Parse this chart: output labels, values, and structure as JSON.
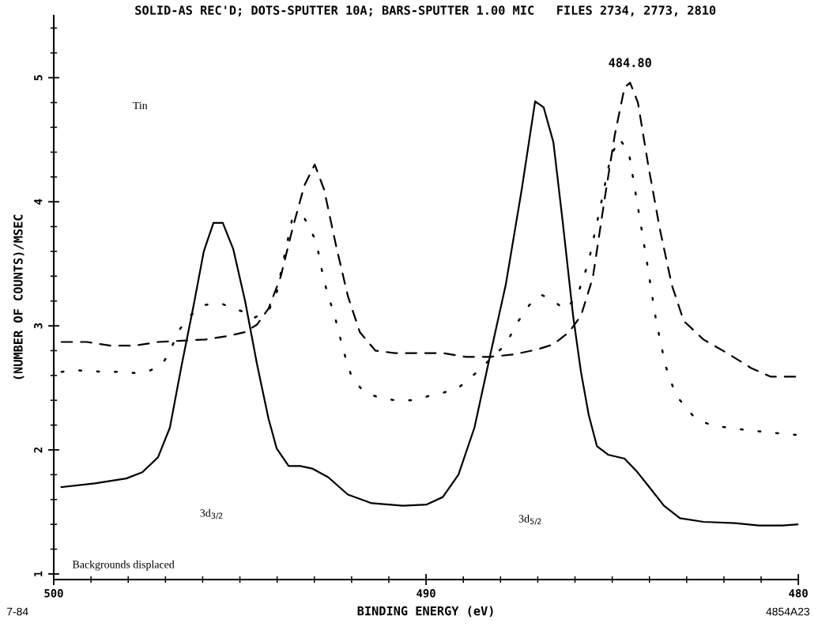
{
  "chart_data": {
    "type": "line",
    "title": "SOLID-AS REC'D; DOTS-SPUTTER 10A; BARS-SPUTTER 1.00 MIC   FILES 2734, 2773, 2810",
    "xlabel": "BINDING ENERGY (eV)",
    "ylabel": "(NUMBER OF COUNTS)/MSEC",
    "xlim": [
      500,
      480
    ],
    "ylim": [
      0.955,
      5.5
    ],
    "xticks": [
      500,
      {
        "value": 499,
        "label": null
      },
      {
        "value": 498,
        "label": null
      },
      {
        "value": 497,
        "label": null
      },
      {
        "value": 496,
        "label": null
      },
      {
        "value": 495,
        "label": null
      },
      {
        "value": 494,
        "label": null
      },
      {
        "value": 493,
        "label": null
      },
      {
        "value": 492,
        "label": null
      },
      {
        "value": 491,
        "label": null
      },
      490,
      {
        "value": 489,
        "label": null
      },
      {
        "value": 488,
        "label": null
      },
      {
        "value": 487,
        "label": null
      },
      {
        "value": 486,
        "label": null
      },
      {
        "value": 485,
        "label": null
      },
      {
        "value": 484,
        "label": null
      },
      {
        "value": 483,
        "label": null
      },
      {
        "value": 482,
        "label": null
      },
      {
        "value": 481,
        "label": null
      },
      480
    ],
    "yticks": [
      1,
      {
        "value": 1.2,
        "label": null
      },
      {
        "value": 1.4,
        "label": null
      },
      {
        "value": 1.6,
        "label": null
      },
      {
        "value": 1.8,
        "label": null
      },
      2,
      {
        "value": 2.2,
        "label": null
      },
      {
        "value": 2.4,
        "label": null
      },
      {
        "value": 2.6,
        "label": null
      },
      {
        "value": 2.8,
        "label": null
      },
      3,
      {
        "value": 3.2,
        "label": null
      },
      {
        "value": 3.4,
        "label": null
      },
      {
        "value": 3.6,
        "label": null
      },
      {
        "value": 3.8,
        "label": null
      },
      4,
      {
        "value": 4.2,
        "label": null
      },
      {
        "value": 4.4,
        "label": null
      },
      {
        "value": 4.6,
        "label": null
      },
      {
        "value": 4.8,
        "label": null
      },
      5,
      {
        "value": 5.2,
        "label": null
      },
      {
        "value": 5.4,
        "label": null
      }
    ],
    "grid": false,
    "marker": "none",
    "series": [
      {
        "color": "#000000",
        "line_style": "solid",
        "x": [
          499.79,
          498.9,
          498.05,
          497.62,
          497.2,
          496.88,
          496.56,
          496.24,
          495.97,
          495.71,
          495.46,
          495.18,
          494.86,
          494.54,
          494.23,
          494.01,
          493.69,
          493.38,
          493.06,
          492.63,
          492.1,
          491.46,
          490.62,
          489.98,
          489.55,
          489.13,
          488.7,
          488.28,
          487.86,
          487.43,
          487.07,
          486.84,
          486.58,
          486.33,
          486.05,
          485.84,
          485.63,
          485.41,
          485.1,
          484.67,
          484.35,
          484.03,
          483.61,
          483.18,
          482.55,
          481.7,
          481.06,
          480.42,
          480.0
        ],
        "values": [
          1.7,
          1.73,
          1.77,
          1.82,
          1.94,
          2.18,
          2.69,
          3.17,
          3.6,
          3.83,
          3.83,
          3.62,
          3.2,
          2.69,
          2.25,
          2.01,
          1.87,
          1.87,
          1.85,
          1.78,
          1.64,
          1.57,
          1.55,
          1.56,
          1.62,
          1.8,
          2.18,
          2.76,
          3.33,
          4.1,
          4.81,
          4.76,
          4.48,
          3.84,
          3.08,
          2.63,
          2.28,
          2.03,
          1.96,
          1.93,
          1.83,
          1.71,
          1.55,
          1.45,
          1.42,
          1.41,
          1.39,
          1.39,
          1.4
        ]
      },
      {
        "color": "#000000",
        "line_style": "dotted",
        "x": [
          499.79,
          499.32,
          498.68,
          498.26,
          497.83,
          497.41,
          497.09,
          496.88,
          496.67,
          496.35,
          495.92,
          495.5,
          495.18,
          494.86,
          494.65,
          494.23,
          494.01,
          493.59,
          493.27,
          492.95,
          492.74,
          492.42,
          492.21,
          492.0,
          491.68,
          491.25,
          490.83,
          490.4,
          489.98,
          489.55,
          489.13,
          488.7,
          488.28,
          487.86,
          487.54,
          487.22,
          486.9,
          486.58,
          486.26,
          485.94,
          485.63,
          485.31,
          485.05,
          484.82,
          484.56,
          484.35,
          484.08,
          483.82,
          483.57,
          483.29,
          483.01,
          482.76,
          482.34,
          481.7,
          481.06,
          480.42,
          480.0
        ],
        "values": [
          2.63,
          2.64,
          2.63,
          2.63,
          2.62,
          2.64,
          2.69,
          2.79,
          2.95,
          3.08,
          3.17,
          3.18,
          3.14,
          3.11,
          3.06,
          3.12,
          3.27,
          3.87,
          3.87,
          3.68,
          3.36,
          3.04,
          2.79,
          2.59,
          2.47,
          2.42,
          2.4,
          2.4,
          2.43,
          2.46,
          2.5,
          2.61,
          2.73,
          2.85,
          3.03,
          3.17,
          3.25,
          3.2,
          3.13,
          3.24,
          3.52,
          3.97,
          4.35,
          4.51,
          4.41,
          4.03,
          3.54,
          3.04,
          2.68,
          2.44,
          2.34,
          2.25,
          2.2,
          2.17,
          2.15,
          2.13,
          2.12
        ]
      },
      {
        "color": "#000000",
        "line_style": "dashed",
        "x": [
          499.79,
          499.11,
          498.47,
          497.83,
          497.2,
          496.56,
          495.92,
          495.29,
          494.86,
          494.54,
          494.23,
          493.91,
          493.59,
          493.27,
          492.99,
          492.74,
          492.42,
          492.1,
          491.78,
          491.36,
          490.83,
          490.19,
          489.55,
          488.92,
          488.28,
          487.64,
          487.01,
          486.58,
          486.16,
          485.84,
          485.52,
          485.2,
          484.93,
          484.67,
          484.52,
          484.31,
          484.03,
          483.72,
          483.4,
          483.08,
          482.55,
          481.91,
          481.27,
          480.74,
          480.0
        ],
        "values": [
          2.87,
          2.87,
          2.84,
          2.84,
          2.87,
          2.88,
          2.89,
          2.92,
          2.95,
          3.01,
          3.14,
          3.39,
          3.78,
          4.13,
          4.3,
          4.1,
          3.65,
          3.24,
          2.95,
          2.8,
          2.78,
          2.78,
          2.78,
          2.75,
          2.75,
          2.77,
          2.81,
          2.85,
          2.95,
          3.08,
          3.39,
          4.03,
          4.54,
          4.92,
          4.96,
          4.8,
          4.29,
          3.78,
          3.33,
          3.04,
          2.89,
          2.78,
          2.66,
          2.59,
          2.59
        ]
      }
    ],
    "annotations": [
      {
        "text": "484.80",
        "x": 484.52,
        "y": 4.96
      },
      "Tin",
      "3d$_{3/2}$",
      "3d$_{5/2}$",
      "Backgrounds displaced",
      "7-84",
      "4854A23"
    ]
  }
}
